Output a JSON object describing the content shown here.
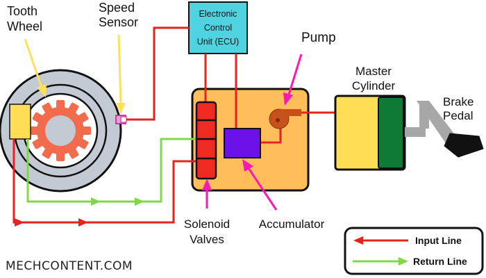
{
  "labels": {
    "tooth_wheel": [
      "Tooth",
      "Wheel"
    ],
    "speed_sensor": [
      "Speed",
      "Sensor"
    ],
    "ecu": [
      "Electronic",
      "Control",
      "Unit (ECU)"
    ],
    "pump": "Pump",
    "master_cylinder": [
      "Master",
      "Cylinder"
    ],
    "brake_pedal": [
      "Brake",
      "Pedal"
    ],
    "solenoid_valves": [
      "Solenoid",
      "Valves"
    ],
    "accumulator": "Accumulator"
  },
  "legend": {
    "input_line": "Input Line",
    "return_line": "Return Line"
  },
  "watermark": "MECHCONTENT.COM",
  "colors": {
    "input_line": "#e52420",
    "return_line": "#7fd84a",
    "pointer": "#ff18b4",
    "yellow_pointer": "#ffe05a",
    "ecu_fill": "#4fd3e0",
    "modulator_fill": "#ffbe5a",
    "solenoid_fill": "#ef2a22",
    "accumulator_fill": "#6a12e8",
    "pump_fill": "#c8501a",
    "master_cylinder_fill": "#ffdd55",
    "master_piston_fill": "#0e7a35",
    "gear_fill": "#f26b4c",
    "disc_fill": "#c3cad4",
    "caliper_fill": "#ffdd55",
    "pedal_fill": "#111111",
    "pedal_arm_fill": "#a7a7a7"
  }
}
